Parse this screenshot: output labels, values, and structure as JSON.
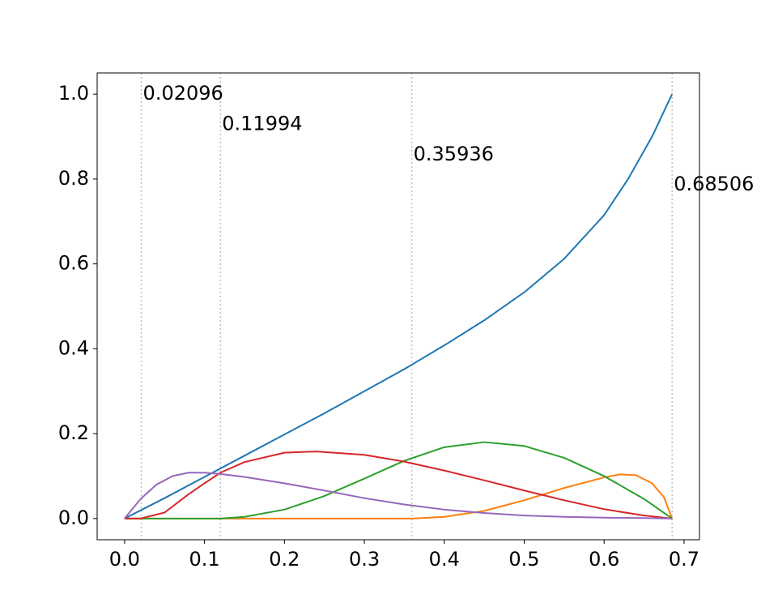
{
  "chart_data": {
    "type": "line",
    "title": "",
    "xlabel": "",
    "ylabel": "",
    "xlim": [
      -0.0343,
      0.7193
    ],
    "ylim": [
      -0.05,
      1.05
    ],
    "grid": false,
    "x_ticks": [
      "0.0",
      "0.1",
      "0.2",
      "0.3",
      "0.4",
      "0.5",
      "0.6",
      "0.7"
    ],
    "y_ticks": [
      "0.0",
      "0.2",
      "0.4",
      "0.6",
      "0.8",
      "1.0"
    ],
    "vlines": [
      {
        "x": 0.02096,
        "label": "0.02096",
        "label_y": 1.0
      },
      {
        "x": 0.11994,
        "label": "0.11994",
        "label_y": 0.929
      },
      {
        "x": 0.35936,
        "label": "0.35936",
        "label_y": 0.857
      },
      {
        "x": 0.68506,
        "label": "0.68506",
        "label_y": 0.786
      }
    ],
    "series": [
      {
        "color": "#1f77b4",
        "x": [
          0.0,
          0.05,
          0.1,
          0.15,
          0.2,
          0.25,
          0.3,
          0.35,
          0.4,
          0.45,
          0.5,
          0.55,
          0.6,
          0.63,
          0.66,
          0.685
        ],
        "y": [
          0.0,
          0.048,
          0.098,
          0.148,
          0.198,
          0.248,
          0.3,
          0.352,
          0.408,
          0.467,
          0.533,
          0.612,
          0.715,
          0.8,
          0.9,
          1.0
        ]
      },
      {
        "color": "#ff7f0e",
        "x": [
          0.0,
          0.1,
          0.2,
          0.3,
          0.36,
          0.4,
          0.45,
          0.5,
          0.55,
          0.6,
          0.62,
          0.64,
          0.66,
          0.675,
          0.685
        ],
        "y": [
          0.0,
          0.0,
          0.0,
          0.0,
          0.0,
          0.004,
          0.018,
          0.043,
          0.072,
          0.097,
          0.104,
          0.102,
          0.083,
          0.05,
          0.0
        ]
      },
      {
        "color": "#2ca02c",
        "x": [
          0.0,
          0.1,
          0.12,
          0.15,
          0.2,
          0.25,
          0.3,
          0.35,
          0.4,
          0.45,
          0.5,
          0.55,
          0.6,
          0.65,
          0.685
        ],
        "y": [
          0.0,
          0.0,
          0.0,
          0.004,
          0.021,
          0.053,
          0.094,
          0.136,
          0.168,
          0.18,
          0.171,
          0.143,
          0.1,
          0.046,
          0.0
        ]
      },
      {
        "color": "#d62728",
        "x": [
          0.0,
          0.02,
          0.05,
          0.08,
          0.1,
          0.12,
          0.15,
          0.2,
          0.24,
          0.3,
          0.35,
          0.4,
          0.45,
          0.5,
          0.55,
          0.6,
          0.65,
          0.685
        ],
        "y": [
          0.0,
          0.0,
          0.014,
          0.057,
          0.083,
          0.108,
          0.133,
          0.155,
          0.158,
          0.15,
          0.134,
          0.113,
          0.09,
          0.066,
          0.043,
          0.022,
          0.007,
          0.0
        ]
      },
      {
        "color": "#9467bd",
        "x": [
          0.0,
          0.02,
          0.04,
          0.06,
          0.08,
          0.1,
          0.12,
          0.15,
          0.2,
          0.25,
          0.3,
          0.35,
          0.4,
          0.45,
          0.5,
          0.55,
          0.6,
          0.65,
          0.685
        ],
        "y": [
          0.0,
          0.046,
          0.08,
          0.1,
          0.108,
          0.108,
          0.105,
          0.098,
          0.083,
          0.066,
          0.048,
          0.033,
          0.021,
          0.013,
          0.007,
          0.004,
          0.002,
          0.001,
          0.0
        ]
      }
    ]
  }
}
